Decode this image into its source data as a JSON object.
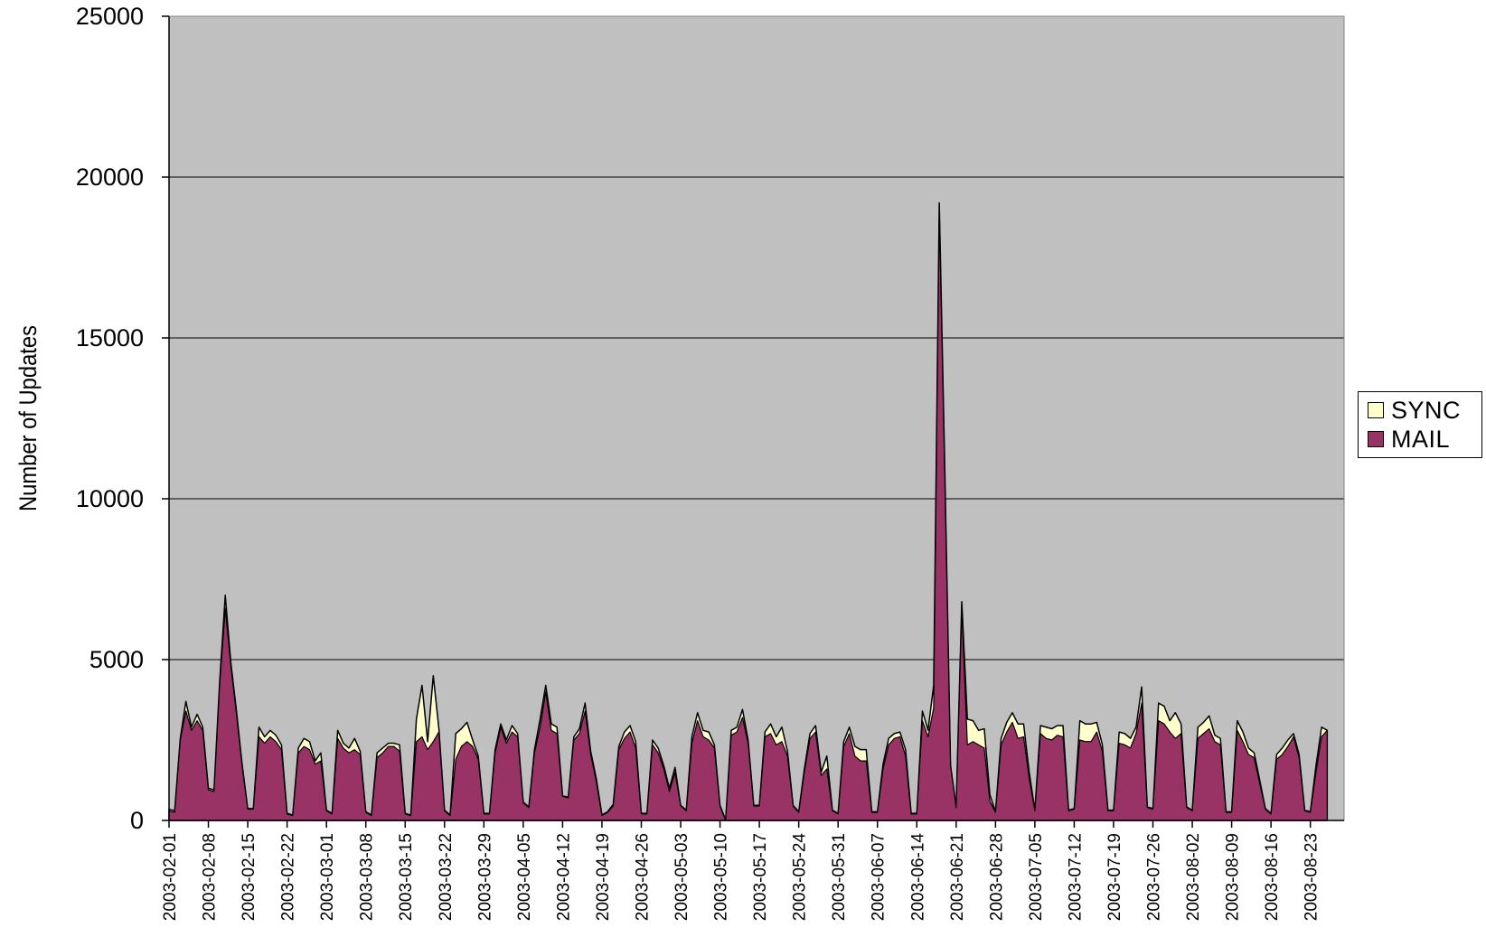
{
  "chart_data": {
    "type": "area",
    "stacked": true,
    "ylabel": "Number of Updates",
    "xlabel": "",
    "title": "",
    "ylim": [
      0,
      25000
    ],
    "yticks": [
      "0",
      "5000",
      "10000",
      "15000",
      "20000",
      "25000"
    ],
    "grid": true,
    "legend_position": "right",
    "x_start": "2003-02-01",
    "x_end": "2003-08-29",
    "xtick_labels": [
      "2003-02-01",
      "2003-02-08",
      "2003-02-15",
      "2003-02-22",
      "2003-03-01",
      "2003-03-08",
      "2003-03-15",
      "2003-03-22",
      "2003-03-29",
      "2003-04-05",
      "2003-04-12",
      "2003-04-19",
      "2003-04-26",
      "2003-05-03",
      "2003-05-10",
      "2003-05-17",
      "2003-05-24",
      "2003-05-31",
      "2003-06-07",
      "2003-06-14",
      "2003-06-21",
      "2003-06-28",
      "2003-07-05",
      "2003-07-12",
      "2003-07-19",
      "2003-07-26",
      "2003-08-02",
      "2003-08-09",
      "2003-08-16",
      "2003-08-23"
    ],
    "series": [
      {
        "name": "MAIL",
        "color": "#993366",
        "values": [
          300,
          250,
          2500,
          3400,
          2800,
          3100,
          2800,
          950,
          900,
          4200,
          6600,
          4800,
          3300,
          1700,
          350,
          350,
          2600,
          2400,
          2600,
          2450,
          2200,
          200,
          150,
          2100,
          2300,
          2200,
          1750,
          1850,
          300,
          200,
          2550,
          2250,
          2100,
          2200,
          2050,
          250,
          150,
          1950,
          2100,
          2300,
          2300,
          2150,
          200,
          150,
          2450,
          2600,
          2200,
          2450,
          2750,
          300,
          150,
          1900,
          2300,
          2450,
          2300,
          1900,
          200,
          200,
          2100,
          2900,
          2400,
          2750,
          2600,
          550,
          400,
          2100,
          2900,
          4000,
          2800,
          2700,
          750,
          700,
          2500,
          2700,
          3400,
          2050,
          1200,
          150,
          250,
          450,
          2200,
          2550,
          2750,
          2250,
          200,
          200,
          2350,
          2100,
          1600,
          900,
          1500,
          450,
          300,
          2400,
          3100,
          2600,
          2500,
          2250,
          450,
          0,
          2650,
          2750,
          3200,
          2400,
          450,
          450,
          2600,
          2700,
          2350,
          2450,
          2000,
          450,
          250,
          1500,
          2550,
          2750,
          1400,
          1600,
          300,
          200,
          2300,
          2700,
          2000,
          1850,
          1850,
          250,
          250,
          1600,
          2350,
          2550,
          2600,
          2000,
          200,
          200,
          3100,
          2600,
          3500,
          18900,
          10500,
          1700,
          400,
          6600,
          2350,
          2450,
          2350,
          2250,
          600,
          250,
          2350,
          2750,
          3050,
          2550,
          2600,
          1300,
          300,
          2700,
          2550,
          2500,
          2650,
          2600,
          300,
          350,
          2500,
          2450,
          2450,
          2750,
          2150,
          300,
          300,
          2400,
          2350,
          2250,
          2700,
          3650,
          400,
          350,
          3100,
          3000,
          2750,
          2550,
          2700,
          400,
          300,
          2550,
          2700,
          2850,
          2450,
          2350,
          250,
          250,
          2800,
          2450,
          2050,
          1950,
          1150,
          350,
          200,
          1900,
          2050,
          2300,
          2600,
          1950,
          300,
          250,
          1500,
          2600,
          2800
        ]
      },
      {
        "name": "SYNC",
        "color": "#FFFFCC",
        "values": [
          50,
          50,
          50,
          300,
          100,
          200,
          100,
          50,
          50,
          100,
          400,
          100,
          100,
          50,
          20,
          20,
          300,
          200,
          200,
          200,
          150,
          20,
          20,
          150,
          250,
          250,
          100,
          250,
          20,
          20,
          250,
          150,
          150,
          350,
          100,
          20,
          20,
          150,
          150,
          100,
          100,
          200,
          20,
          20,
          700,
          1600,
          250,
          2050,
          100,
          20,
          20,
          800,
          550,
          600,
          200,
          100,
          20,
          20,
          100,
          100,
          100,
          200,
          100,
          20,
          20,
          100,
          250,
          200,
          200,
          200,
          20,
          20,
          100,
          150,
          250,
          100,
          100,
          20,
          20,
          50,
          100,
          200,
          200,
          200,
          20,
          20,
          150,
          150,
          100,
          100,
          150,
          20,
          20,
          200,
          250,
          200,
          250,
          100,
          20,
          20,
          150,
          150,
          250,
          100,
          20,
          20,
          150,
          300,
          250,
          450,
          150,
          20,
          20,
          100,
          150,
          200,
          100,
          400,
          20,
          20,
          150,
          200,
          300,
          350,
          350,
          20,
          20,
          150,
          200,
          150,
          150,
          200,
          20,
          20,
          300,
          200,
          700,
          300,
          300,
          20,
          20,
          200,
          800,
          650,
          450,
          600,
          200,
          20,
          200,
          300,
          300,
          450,
          400,
          200,
          20,
          250,
          350,
          350,
          300,
          350,
          20,
          20,
          600,
          550,
          550,
          300,
          200,
          20,
          20,
          350,
          350,
          300,
          200,
          500,
          20,
          20,
          550,
          550,
          350,
          800,
          300,
          20,
          20,
          350,
          350,
          400,
          200,
          200,
          20,
          20,
          300,
          300,
          200,
          150,
          100,
          20,
          20,
          150,
          200,
          200,
          100,
          100,
          20,
          20,
          200,
          300
        ]
      }
    ]
  }
}
